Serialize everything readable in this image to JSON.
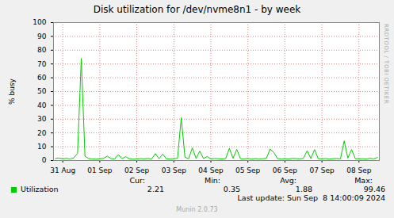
{
  "chart_data": {
    "type": "line",
    "title": "Disk utilization for /dev/nvme8n1 - by week",
    "y_label": "% busy",
    "x": [
      -0.2,
      -0.1,
      0,
      0.1,
      0.2,
      0.3,
      0.4,
      0.5,
      0.6,
      0.7,
      0.8,
      0.9,
      1,
      1.1,
      1.2,
      1.3,
      1.4,
      1.5,
      1.6,
      1.7,
      1.8,
      1.9,
      2,
      2.1,
      2.2,
      2.3,
      2.4,
      2.5,
      2.6,
      2.7,
      2.8,
      2.9,
      3,
      3.1,
      3.2,
      3.3,
      3.4,
      3.5,
      3.6,
      3.7,
      3.8,
      3.9,
      4,
      4.1,
      4.2,
      4.3,
      4.4,
      4.5,
      4.6,
      4.7,
      4.8,
      4.9,
      5,
      5.1,
      5.2,
      5.3,
      5.4,
      5.5,
      5.6,
      5.7,
      5.8,
      5.9,
      6,
      6.1,
      6.2,
      6.3,
      6.4,
      6.5,
      6.6,
      6.7,
      6.8,
      6.9,
      7,
      7.1,
      7.2,
      7.3,
      7.4,
      7.5,
      7.6,
      7.7,
      7.8,
      7.9,
      8,
      8.1,
      8.2,
      8.3,
      8.4,
      8.5
    ],
    "series": [
      {
        "name": "Utilization",
        "color": "#00cc00",
        "values": [
          1.5,
          1.8,
          1.2,
          1.6,
          1.1,
          1.9,
          5.2,
          74,
          3.1,
          1.4,
          1.2,
          1.0,
          1.3,
          1.5,
          3.2,
          1.4,
          1.1,
          4.3,
          1.3,
          2.8,
          1.2,
          1.0,
          1.1,
          1.4,
          1.2,
          1.5,
          1.1,
          5.0,
          1.3,
          4.6,
          1.2,
          1.1,
          1.3,
          1.6,
          31,
          2.4,
          1.3,
          9.2,
          1.5,
          6.8,
          1.4,
          2.9,
          1.2,
          1.5,
          1.3,
          1.1,
          1.4,
          8.9,
          1.6,
          8.1,
          1.3,
          1.2,
          1.5,
          1.1,
          1.4,
          1.2,
          1.3,
          1.6,
          8.3,
          5.9,
          1.4,
          1.2,
          1.3,
          1.1,
          1.5,
          1.4,
          1.2,
          1.6,
          7.1,
          1.5,
          7.9,
          1.3,
          1.2,
          1.4,
          1.1,
          1.3,
          1.5,
          1.2,
          14.2,
          1.8,
          8.0,
          1.4,
          1.2,
          1.3,
          1.1,
          1.6,
          1.2,
          2.2
        ],
        "stats": [
          2.21,
          0.35,
          1.88,
          99.46
        ]
      }
    ],
    "stat_headers": [
      "Cur:",
      "Min:",
      "Avg:",
      "Max:"
    ],
    "xlim": [
      -0.25,
      8.55
    ],
    "xticks": [
      {
        "value": 0,
        "label": "31 Aug"
      },
      {
        "value": 1,
        "label": "01 Sep"
      },
      {
        "value": 2,
        "label": "02 Sep"
      },
      {
        "value": 3,
        "label": "03 Sep"
      },
      {
        "value": 4,
        "label": "04 Sep"
      },
      {
        "value": 5,
        "label": "05 Sep"
      },
      {
        "value": 6,
        "label": "06 Sep"
      },
      {
        "value": 7,
        "label": "07 Sep"
      },
      {
        "value": 8,
        "label": "08 Sep"
      }
    ],
    "ylim": [
      0,
      100
    ],
    "yticks": [
      0,
      10,
      20,
      30,
      40,
      50,
      60,
      70,
      80,
      90,
      100
    ],
    "grid": true,
    "legend": "bottom",
    "last_update": "Last update: Sun Sep  8 14:00:09 2024",
    "side_label": "RRDTOOL / TOBI OETIKER",
    "footer": "Munin 2.0.73"
  }
}
